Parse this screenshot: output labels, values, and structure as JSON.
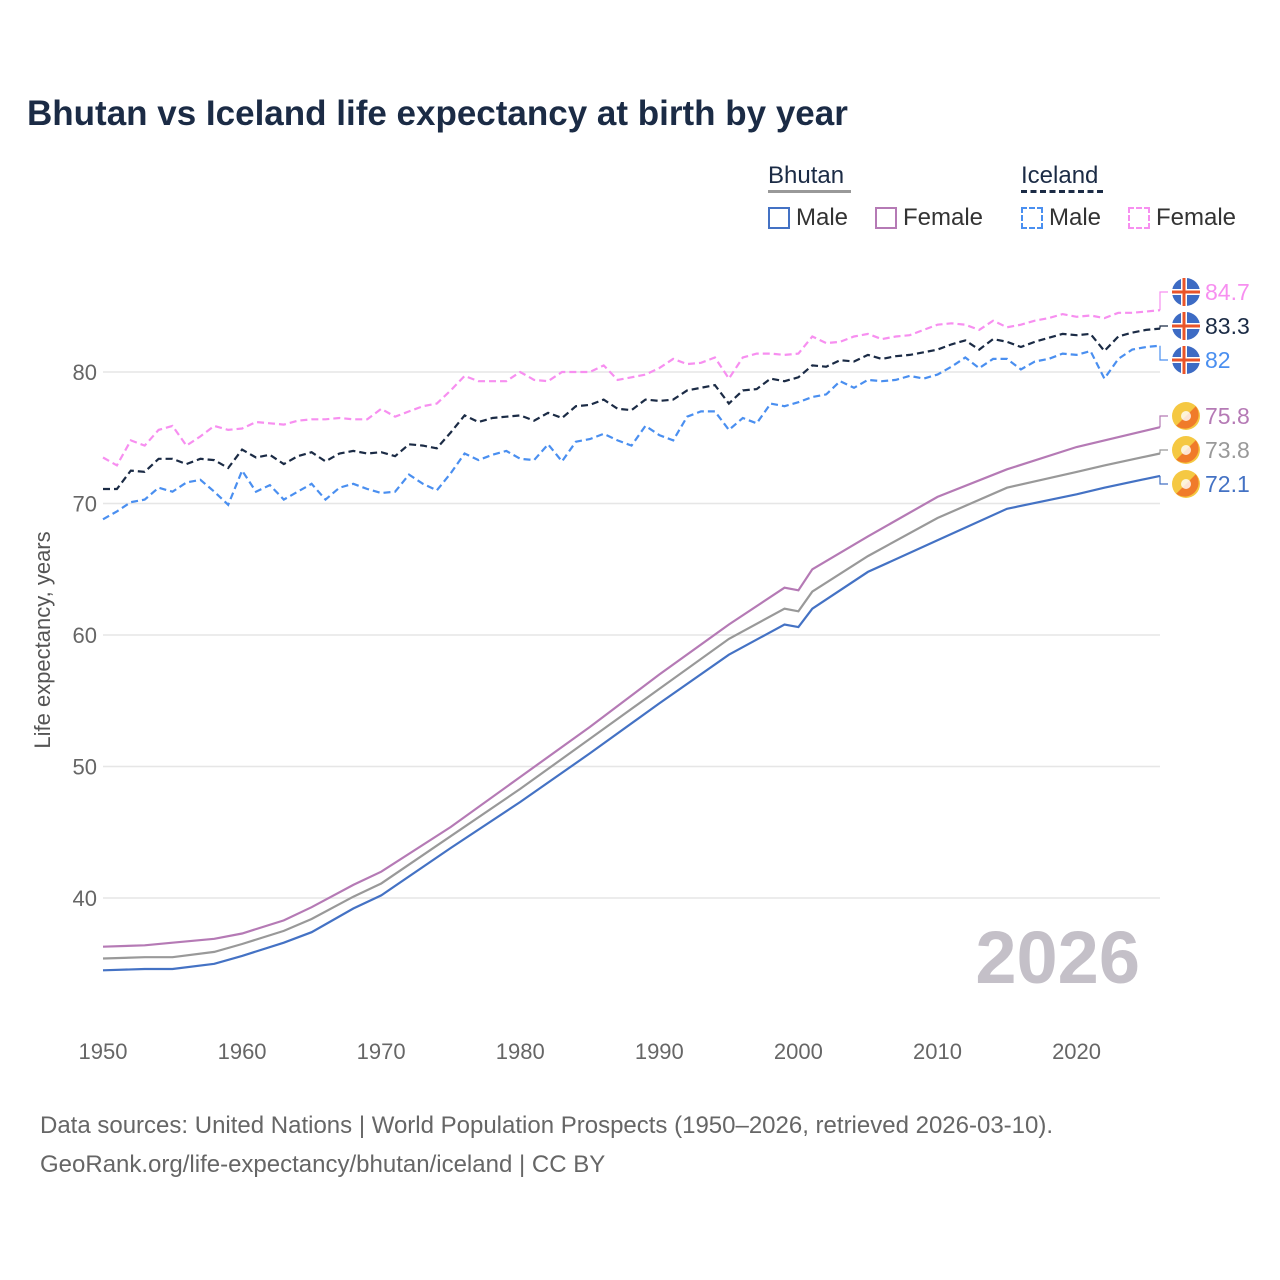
{
  "chart_data": {
    "type": "line",
    "title": "Bhutan vs Iceland life expectancy at birth by year",
    "ylabel": "Life expectancy, years",
    "xlabel": "",
    "xlim": [
      1950,
      2026
    ],
    "ylim": [
      33,
      87
    ],
    "y_ticks": [
      40,
      50,
      60,
      70,
      80
    ],
    "x_ticks": [
      1950,
      1960,
      1970,
      1980,
      1990,
      2000,
      2010,
      2020
    ],
    "grid": true,
    "watermark_year": "2026",
    "legend": {
      "placement": "top-right",
      "groups": [
        {
          "name": "Bhutan",
          "items": [
            "Male",
            "Female"
          ]
        },
        {
          "name": "Iceland",
          "items": [
            "Male",
            "Female"
          ]
        }
      ]
    },
    "series": [
      {
        "name": "Iceland Female",
        "country": "Iceland",
        "sex": "Female",
        "color": "#f78ff0",
        "dashed": true,
        "end_label": "84.7",
        "start_year": 1950,
        "values": [
          73.5,
          72.9,
          74.8,
          74.4,
          75.6,
          75.9,
          74.4,
          75.1,
          75.9,
          75.6,
          75.7,
          76.2,
          76.1,
          76.0,
          76.3,
          76.4,
          76.4,
          76.5,
          76.4,
          76.4,
          77.2,
          76.6,
          77.0,
          77.4,
          77.6,
          78.6,
          79.7,
          79.3,
          79.3,
          79.3,
          80.0,
          79.4,
          79.3,
          80.0,
          80.0,
          80.0,
          80.5,
          79.4,
          79.6,
          79.8,
          80.3,
          81.0,
          80.6,
          80.7,
          81.1,
          79.5,
          81.1,
          81.4,
          81.4,
          81.3,
          81.4,
          82.7,
          82.2,
          82.3,
          82.7,
          82.9,
          82.5,
          82.7,
          82.8,
          83.2,
          83.6,
          83.7,
          83.6,
          83.2,
          83.9,
          83.4,
          83.6,
          83.9,
          84.1,
          84.4,
          84.2,
          84.3,
          84.1,
          84.5,
          84.5,
          84.6,
          84.7
        ]
      },
      {
        "name": "Iceland Both sexes",
        "country": "Iceland",
        "sex": "Both",
        "color": "#1b2b45",
        "dashed": true,
        "end_label": "83.3",
        "start_year": 1950,
        "values": [
          71.1,
          71.1,
          72.5,
          72.4,
          73.4,
          73.4,
          73.0,
          73.4,
          73.3,
          72.7,
          74.1,
          73.5,
          73.7,
          73.0,
          73.6,
          73.9,
          73.2,
          73.8,
          74.0,
          73.8,
          73.9,
          73.6,
          74.5,
          74.4,
          74.2,
          75.4,
          76.7,
          76.2,
          76.5,
          76.6,
          76.7,
          76.3,
          76.9,
          76.5,
          77.4,
          77.5,
          77.9,
          77.2,
          77.1,
          77.9,
          77.8,
          77.9,
          78.6,
          78.8,
          79.0,
          77.6,
          78.6,
          78.7,
          79.5,
          79.3,
          79.6,
          80.5,
          80.4,
          80.9,
          80.8,
          81.3,
          81.0,
          81.2,
          81.3,
          81.5,
          81.7,
          82.1,
          82.4,
          81.7,
          82.5,
          82.3,
          81.9,
          82.3,
          82.6,
          82.9,
          82.8,
          82.9,
          81.6,
          82.7,
          83.0,
          83.2,
          83.3
        ]
      },
      {
        "name": "Iceland Male",
        "country": "Iceland",
        "sex": "Male",
        "color": "#4a8ff0",
        "dashed": true,
        "end_label": "82",
        "start_year": 1950,
        "values": [
          68.8,
          69.4,
          70.1,
          70.3,
          71.2,
          70.9,
          71.6,
          71.8,
          70.9,
          69.9,
          72.5,
          70.9,
          71.4,
          70.3,
          70.9,
          71.5,
          70.3,
          71.2,
          71.5,
          71.1,
          70.8,
          70.9,
          72.2,
          71.5,
          71.0,
          72.3,
          73.8,
          73.3,
          73.7,
          74.0,
          73.4,
          73.3,
          74.5,
          73.2,
          74.7,
          74.9,
          75.3,
          74.8,
          74.4,
          75.9,
          75.2,
          74.8,
          76.6,
          77.0,
          77.0,
          75.6,
          76.5,
          76.1,
          77.6,
          77.4,
          77.7,
          78.1,
          78.3,
          79.3,
          78.8,
          79.4,
          79.3,
          79.4,
          79.7,
          79.5,
          79.8,
          80.4,
          81.1,
          80.3,
          81.0,
          81.0,
          80.2,
          80.8,
          81.0,
          81.4,
          81.3,
          81.6,
          79.5,
          81.0,
          81.7,
          81.9,
          82.0
        ]
      },
      {
        "name": "Bhutan Female",
        "country": "Bhutan",
        "sex": "Female",
        "color": "#b57ab5",
        "dashed": false,
        "end_label": "75.8",
        "x": [
          1950,
          1953,
          1955,
          1958,
          1960,
          1963,
          1965,
          1968,
          1970,
          1975,
          1980,
          1985,
          1990,
          1995,
          1999,
          2000,
          2001,
          2005,
          2010,
          2015,
          2020,
          2022,
          2026
        ],
        "values": [
          36.3,
          36.4,
          36.6,
          36.9,
          37.3,
          38.3,
          39.3,
          41.0,
          42.0,
          45.4,
          49.2,
          53.0,
          57.0,
          60.8,
          63.6,
          63.4,
          65.0,
          67.5,
          70.5,
          72.6,
          74.3,
          74.8,
          75.8
        ]
      },
      {
        "name": "Bhutan Both sexes",
        "country": "Bhutan",
        "sex": "Both",
        "color": "#999999",
        "dashed": false,
        "end_label": "73.8",
        "x": [
          1950,
          1953,
          1955,
          1958,
          1960,
          1963,
          1965,
          1968,
          1970,
          1975,
          1980,
          1985,
          1990,
          1995,
          1999,
          2000,
          2001,
          2005,
          2010,
          2015,
          2020,
          2022,
          2026
        ],
        "values": [
          35.4,
          35.5,
          35.5,
          35.9,
          36.5,
          37.5,
          38.4,
          40.1,
          41.1,
          44.7,
          48.3,
          52.1,
          55.9,
          59.7,
          62.0,
          61.8,
          63.3,
          66.0,
          68.9,
          71.2,
          72.4,
          72.9,
          73.8
        ]
      },
      {
        "name": "Bhutan Male",
        "country": "Bhutan",
        "sex": "Male",
        "color": "#4472c4",
        "dashed": false,
        "end_label": "72.1",
        "x": [
          1950,
          1953,
          1955,
          1958,
          1960,
          1963,
          1965,
          1968,
          1970,
          1975,
          1980,
          1985,
          1990,
          1995,
          1999,
          2000,
          2001,
          2005,
          2010,
          2015,
          2020,
          2022,
          2026
        ],
        "values": [
          34.5,
          34.6,
          34.6,
          35.0,
          35.6,
          36.6,
          37.4,
          39.2,
          40.2,
          43.8,
          47.3,
          51.0,
          54.8,
          58.5,
          60.8,
          60.6,
          62.0,
          64.8,
          67.2,
          69.6,
          70.7,
          71.2,
          72.1
        ]
      }
    ]
  },
  "legend": {
    "bhutan": "Bhutan",
    "iceland": "Iceland",
    "male": "Male",
    "female": "Female"
  },
  "footer": {
    "line1": "Data sources: United Nations | World Population Prospects (1950–2026, retrieved 2026-03-10).",
    "line2": "GeoRank.org/life-expectancy/bhutan/iceland | CC BY"
  }
}
